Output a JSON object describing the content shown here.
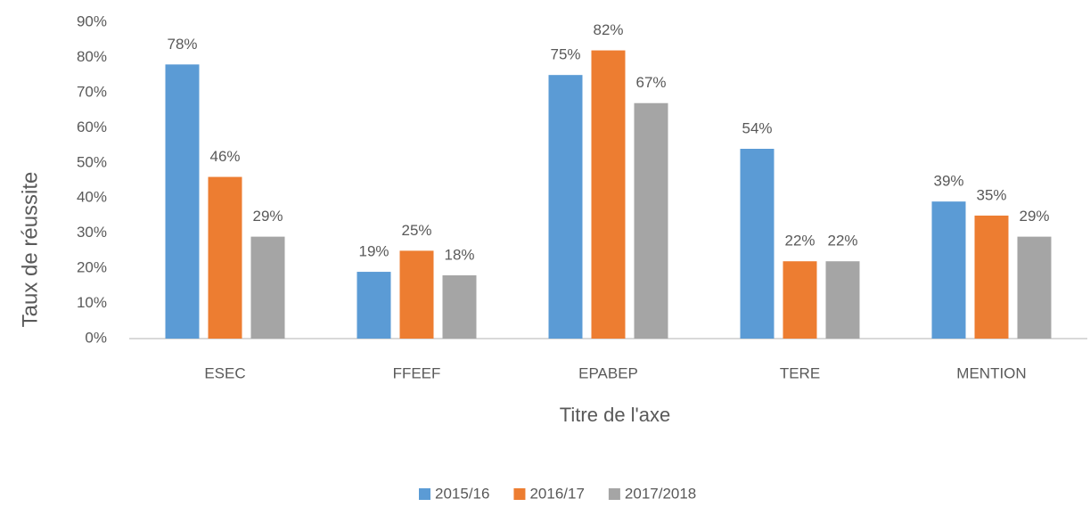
{
  "chart_data": {
    "type": "bar",
    "y_label": "Taux de réussite",
    "x_label": "Titre de l'axe",
    "categories": [
      "ESEC",
      "FFEEF",
      "EPABEP",
      "TERE",
      "MENTION"
    ],
    "series": [
      {
        "name": "2015/16",
        "color": "#5b9bd5",
        "values": [
          78,
          19,
          75,
          54,
          39
        ],
        "value_labels": [
          "78%",
          "19%",
          "75%",
          "54%",
          "39%"
        ]
      },
      {
        "name": "2016/17",
        "color": "#ed7d31",
        "values": [
          46,
          25,
          82,
          22,
          35
        ],
        "value_labels": [
          "46%",
          "25%",
          "82%",
          "22%",
          "35%"
        ]
      },
      {
        "name": "2017/2018",
        "color": "#a5a5a5",
        "values": [
          29,
          18,
          67,
          22,
          29
        ],
        "value_labels": [
          "29%",
          "18%",
          "67%",
          "22%",
          "29%"
        ]
      }
    ],
    "ylim": [
      0,
      90
    ],
    "yticks": [
      {
        "value": 0,
        "label": "0%"
      },
      {
        "value": 10,
        "label": "10%"
      },
      {
        "value": 20,
        "label": "20%"
      },
      {
        "value": 30,
        "label": "30%"
      },
      {
        "value": 40,
        "label": "40%"
      },
      {
        "value": 50,
        "label": "50%"
      },
      {
        "value": 60,
        "label": "60%"
      },
      {
        "value": 70,
        "label": "70%"
      },
      {
        "value": 80,
        "label": "80%"
      },
      {
        "value": 90,
        "label": "90%"
      }
    ],
    "grid": false,
    "legend": "bottom"
  }
}
